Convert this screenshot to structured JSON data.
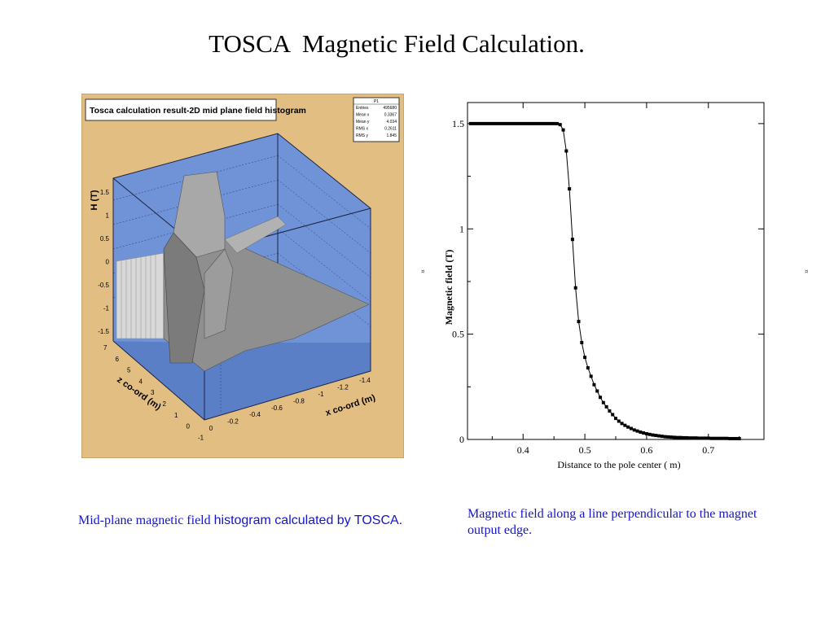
{
  "slide": {
    "title": "TOSCA  Magnetic Field Calculation.",
    "caption_left_serif": "Mid-plane magnetic field ",
    "caption_left_sans": "histogram calculated by TOSCA.",
    "caption_right": "Magnetic field along a line perpendicular to the magnet output edge.",
    "mark": "¤"
  },
  "histogram": {
    "title": "Tosca calculation result-2D mid plane field histogram",
    "stats_name": "P1",
    "stats": [
      {
        "label": "Entries",
        "value": "495680"
      },
      {
        "label": "Mean x",
        "value": "0.3367"
      },
      {
        "label": "Mean y",
        "value": "4.034"
      },
      {
        "label": "RMS x",
        "value": "0.2611"
      },
      {
        "label": "RMS y",
        "value": "1.845"
      }
    ],
    "zaxis_label": "H  (T)",
    "zaxis_ticks": [
      "1.5",
      "1",
      "0.5",
      "0",
      "-0.5",
      "-1",
      "-1.5"
    ],
    "yaxis_label": "z co-ord (m)",
    "yaxis_ticks": [
      "7",
      "6",
      "5",
      "4",
      "3",
      "2",
      "1",
      "0",
      "-1"
    ],
    "xaxis_label": "x co-ord (m)",
    "xaxis_ticks": [
      "0",
      "-0.2",
      "-0.4",
      "-0.6",
      "-0.8",
      "-1",
      "-1.2",
      "-1.4"
    ],
    "colors": {
      "panel": "#e3be82",
      "box": "#6f93d6",
      "surface": "#9a9a9a"
    }
  },
  "chart_data": {
    "type": "scatter",
    "title": "",
    "xlabel": "Distance to the pole center ( m)",
    "ylabel": "Magnetic field (T)",
    "xlim": [
      0.31,
      0.79
    ],
    "ylim": [
      0,
      1.6
    ],
    "x_ticks": [
      "0.4",
      "0.5",
      "0.6",
      "0.7"
    ],
    "y_ticks": [
      "0",
      "0.5",
      "1",
      "1.5"
    ],
    "series": [
      {
        "x": [
          0.315,
          0.32,
          0.325,
          0.33,
          0.335,
          0.34,
          0.345,
          0.35,
          0.355,
          0.36,
          0.365,
          0.37,
          0.375,
          0.38,
          0.385,
          0.39,
          0.395,
          0.4,
          0.405,
          0.41,
          0.415,
          0.42,
          0.425,
          0.43,
          0.435,
          0.44,
          0.445,
          0.45,
          0.455,
          0.46,
          0.465,
          0.47,
          0.475,
          0.48,
          0.485,
          0.49,
          0.495,
          0.5,
          0.505,
          0.51,
          0.515,
          0.52,
          0.525,
          0.53,
          0.535,
          0.54,
          0.545,
          0.55,
          0.555,
          0.56,
          0.565,
          0.57,
          0.575,
          0.58,
          0.585,
          0.59,
          0.595,
          0.6,
          0.605,
          0.61,
          0.615,
          0.62,
          0.625,
          0.63,
          0.635,
          0.64,
          0.645,
          0.65,
          0.655,
          0.66,
          0.665,
          0.67,
          0.675,
          0.68,
          0.685,
          0.69,
          0.695,
          0.7,
          0.705,
          0.71,
          0.715,
          0.72,
          0.725,
          0.73,
          0.735,
          0.74,
          0.745,
          0.75
        ],
        "y": [
          1.5,
          1.5,
          1.5,
          1.5,
          1.5,
          1.5,
          1.5,
          1.5,
          1.5,
          1.5,
          1.5,
          1.5,
          1.5,
          1.5,
          1.5,
          1.5,
          1.5,
          1.5,
          1.5,
          1.5,
          1.5,
          1.5,
          1.5,
          1.5,
          1.5,
          1.5,
          1.5,
          1.5,
          1.5,
          1.495,
          1.47,
          1.37,
          1.19,
          0.95,
          0.72,
          0.56,
          0.46,
          0.39,
          0.34,
          0.3,
          0.26,
          0.23,
          0.2,
          0.175,
          0.155,
          0.135,
          0.118,
          0.1,
          0.087,
          0.076,
          0.067,
          0.059,
          0.052,
          0.045,
          0.04,
          0.035,
          0.031,
          0.027,
          0.024,
          0.021,
          0.019,
          0.017,
          0.015,
          0.013,
          0.012,
          0.011,
          0.01,
          0.009,
          0.009,
          0.008,
          0.008,
          0.007,
          0.007,
          0.007,
          0.006,
          0.006,
          0.006,
          0.006,
          0.005,
          0.005,
          0.005,
          0.005,
          0.005,
          0.005,
          0.004,
          0.004,
          0.004,
          0.004
        ]
      }
    ],
    "grid": false,
    "legend": "none"
  }
}
